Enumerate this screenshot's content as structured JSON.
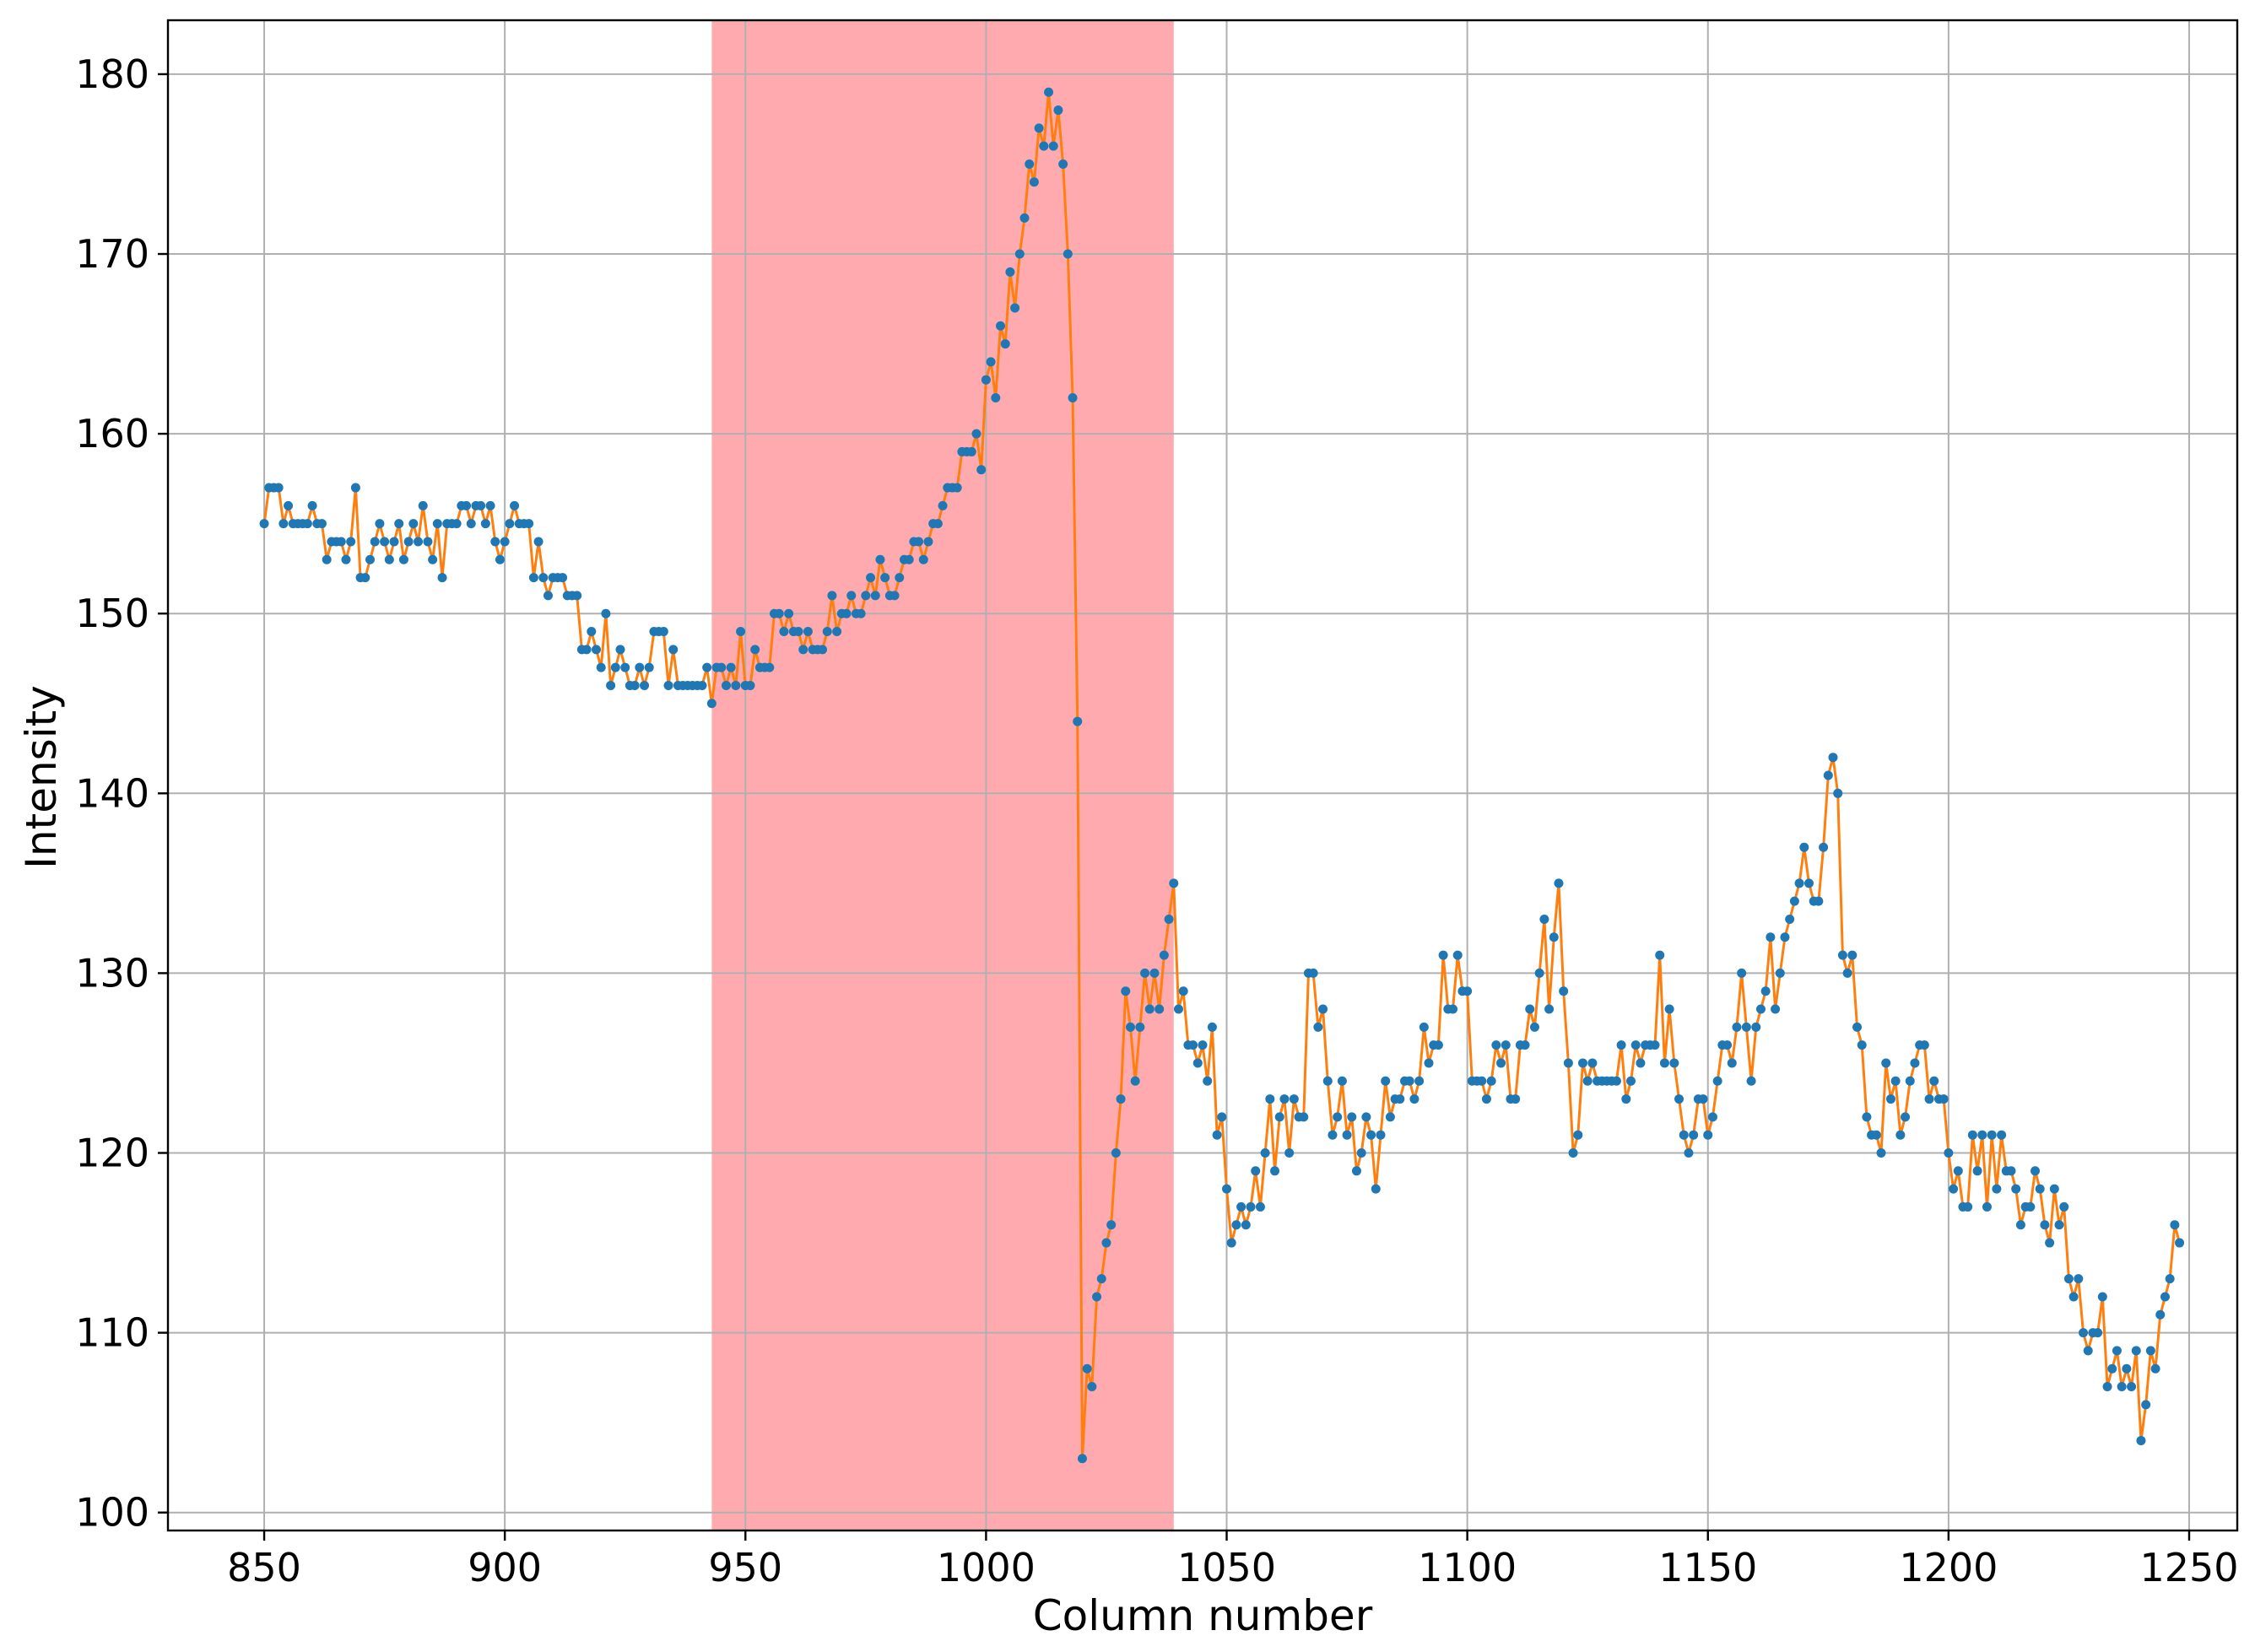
{
  "chart_data": {
    "type": "line",
    "title": "",
    "xlabel": "Column number",
    "ylabel": "Intensity",
    "xlim": [
      830,
      1260
    ],
    "ylim": [
      99,
      183
    ],
    "xticks": [
      850,
      900,
      950,
      1000,
      1050,
      1100,
      1150,
      1200,
      1250
    ],
    "yticks": [
      100,
      110,
      120,
      130,
      140,
      150,
      160,
      170,
      180
    ],
    "grid": true,
    "highlight_region": {
      "x_start": 943,
      "x_end": 1039,
      "color": "#ffaaaf"
    },
    "line_color": "#ff7f0e",
    "marker_color": "#1f77b4",
    "series": [
      {
        "x_start": 850,
        "x_step": 1,
        "values": [
          155,
          157,
          157,
          157,
          155,
          156,
          155,
          155,
          155,
          155,
          156,
          155,
          155,
          153,
          154,
          154,
          154,
          153,
          154,
          157,
          152,
          152,
          153,
          154,
          155,
          154,
          153,
          154,
          155,
          153,
          154,
          155,
          154,
          156,
          154,
          153,
          155,
          152,
          155,
          155,
          155,
          156,
          156,
          155,
          156,
          156,
          155,
          156,
          154,
          153,
          154,
          155,
          156,
          155,
          155,
          155,
          152,
          154,
          152,
          151,
          152,
          152,
          152,
          151,
          151,
          151,
          148,
          148,
          149,
          148,
          147,
          150,
          146,
          147,
          148,
          147,
          146,
          146,
          147,
          146,
          147,
          149,
          149,
          149,
          146,
          148,
          146,
          146,
          146,
          146,
          146,
          146,
          147,
          145,
          147,
          147,
          146,
          147,
          146,
          149,
          146,
          146,
          148,
          147,
          147,
          147,
          150,
          150,
          149,
          150,
          149,
          149,
          148,
          149,
          148,
          148,
          148,
          149,
          151,
          149,
          150,
          150,
          151,
          150,
          150,
          151,
          152,
          151,
          153,
          152,
          151,
          151,
          152,
          153,
          153,
          154,
          154,
          153,
          154,
          155,
          155,
          156,
          157,
          157,
          157,
          159,
          159,
          159,
          160,
          158,
          163,
          164,
          162,
          166,
          165,
          169,
          167,
          170,
          172,
          175,
          174,
          177,
          176,
          179,
          176,
          178,
          175,
          170,
          162,
          144,
          103,
          108,
          107,
          112,
          113,
          115,
          116,
          120,
          123,
          129,
          127,
          124,
          127,
          130,
          128,
          130,
          128,
          131,
          133,
          135,
          128,
          129,
          126,
          126,
          125,
          126,
          124,
          127,
          121,
          122,
          118,
          115,
          116,
          117,
          116,
          117,
          119,
          117,
          120,
          123,
          119,
          122,
          123,
          120,
          123,
          122,
          122,
          130,
          130,
          127,
          128,
          124,
          121,
          122,
          124,
          121,
          122,
          119,
          120,
          122,
          121,
          118,
          121,
          124,
          122,
          123,
          123,
          124,
          124,
          123,
          124,
          127,
          125,
          126,
          126,
          131,
          128,
          128,
          131,
          129,
          129,
          124,
          124,
          124,
          123,
          124,
          126,
          125,
          126,
          123,
          123,
          126,
          126,
          128,
          127,
          130,
          133,
          128,
          132,
          135,
          129,
          125,
          120,
          121,
          125,
          124,
          125,
          124,
          124,
          124,
          124,
          124,
          126,
          123,
          124,
          126,
          125,
          126,
          126,
          126,
          131,
          125,
          128,
          125,
          123,
          121,
          120,
          121,
          123,
          123,
          121,
          122,
          124,
          126,
          126,
          125,
          127,
          130,
          127,
          124,
          127,
          128,
          129,
          132,
          128,
          130,
          132,
          133,
          134,
          135,
          137,
          135,
          134,
          134,
          137,
          141,
          142,
          140,
          131,
          130,
          131,
          127,
          126,
          122,
          121,
          121,
          120,
          125,
          123,
          124,
          121,
          122,
          124,
          125,
          126,
          126,
          123,
          124,
          123,
          123,
          120,
          118,
          119,
          117,
          117,
          121,
          119,
          121,
          117,
          121,
          118,
          121,
          119,
          119,
          118,
          116,
          117,
          117,
          119,
          118,
          116,
          115,
          118,
          116,
          117,
          113,
          112,
          113,
          110,
          109,
          110,
          110,
          112,
          107,
          108,
          109,
          107,
          108,
          107,
          109,
          104,
          106,
          109,
          108,
          111,
          112,
          113,
          116,
          115
        ]
      }
    ]
  }
}
